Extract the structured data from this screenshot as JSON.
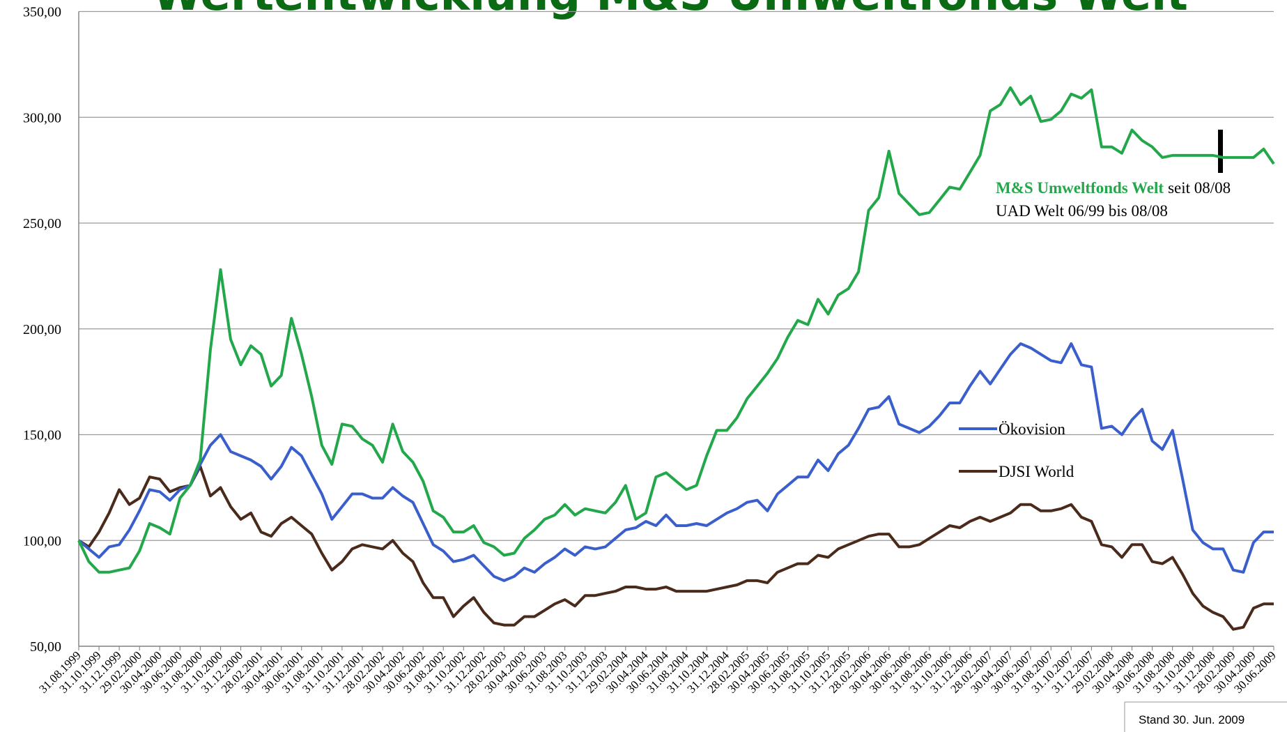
{
  "chart_data": {
    "type": "line",
    "title": "Wertentwicklung M&S Umweltfonds Welt",
    "annotations": [
      "seit 08/08",
      "UAD Welt 06/99 bis 08/08",
      "Stand 30. Jun. 2009"
    ],
    "categories": [
      "31.08.1999",
      null,
      "31.10.1999",
      null,
      "31.12.1999",
      null,
      "29.02.2000",
      null,
      "30.04.2000",
      null,
      "30.06.2000",
      null,
      "31.08.2000",
      null,
      "31.10.2000",
      null,
      "31.12.2000",
      null,
      "28.02.2001",
      null,
      "30.04.2001",
      null,
      "30.06.2001",
      null,
      "31.08.2001",
      null,
      "31.10.2001",
      null,
      "31.12.2001",
      null,
      "28.02.2002",
      null,
      "30.04.2002",
      null,
      "30.06.2002",
      null,
      "31.08.2002",
      null,
      "31.10.2002",
      null,
      "31.12.2002",
      null,
      "28.02.2003",
      null,
      "30.04.2003",
      null,
      "30.06.2003",
      null,
      "31.08.2003",
      null,
      "31.10.2003",
      null,
      "31.12.2003",
      null,
      "29.02.2004",
      null,
      "30.04.2004",
      null,
      "30.06.2004",
      null,
      "31.08.2004",
      null,
      "31.10.2004",
      null,
      "31.12.2004",
      null,
      "28.02.2005",
      null,
      "30.04.2005",
      null,
      "30.06.2005",
      null,
      "31.08.2005",
      null,
      "31.10.2005",
      null,
      "31.12.2005",
      null,
      "28.02.2006",
      null,
      "30.04.2006",
      null,
      "30.06.2006",
      null,
      "31.08.2006",
      null,
      "31.10.2006",
      null,
      "31.12.2006",
      null,
      "28.02.2007",
      null,
      "30.04.2007",
      null,
      "30.06.2007",
      null,
      "31.08.2007",
      null,
      "31.10.2007",
      null,
      "31.12.2007",
      null,
      "29.02.2008",
      null,
      "30.04.2008",
      null,
      "30.06.2008",
      null,
      "31.08.2008",
      null,
      "31.10.2008",
      null,
      "31.12.2008",
      null,
      "28.02.2009",
      null,
      "30.04.2009",
      null,
      "30.06.2009"
    ],
    "series": [
      {
        "name": "M&S Umweltfonds Welt",
        "color": "#22a84a",
        "values": [
          100,
          90,
          85,
          85,
          86,
          87,
          95,
          108,
          106,
          103,
          120,
          126,
          138,
          190,
          228,
          195,
          183,
          192,
          188,
          173,
          178,
          205,
          188,
          168,
          145,
          136,
          155,
          154,
          148,
          145,
          137,
          155,
          142,
          137,
          128,
          114,
          111,
          104,
          104,
          107,
          99,
          97,
          93,
          94,
          101,
          105,
          110,
          112,
          117,
          112,
          115,
          114,
          113,
          118,
          126,
          110,
          113,
          130,
          132,
          128,
          124,
          126,
          140,
          152,
          152,
          158,
          167,
          173,
          179,
          186,
          196,
          204,
          202,
          214,
          207,
          216,
          219,
          227,
          256,
          262,
          284,
          264,
          259,
          254,
          255,
          261,
          267,
          266,
          274,
          282,
          303,
          306,
          314,
          306,
          310,
          298,
          299,
          303,
          311,
          309,
          313,
          286,
          286,
          283,
          294,
          289,
          286,
          281,
          282,
          282,
          282,
          282,
          282,
          281,
          281,
          281,
          281,
          285,
          278
        ]
      },
      {
        "name": "Ökovision",
        "color": "#3a5fcd",
        "values": [
          100,
          96,
          92,
          97,
          98,
          105,
          114,
          124,
          123,
          119,
          124,
          126,
          136,
          145,
          150,
          142,
          140,
          138,
          135,
          129,
          135,
          144,
          140,
          131,
          122,
          110,
          116,
          122,
          122,
          120,
          120,
          125,
          121,
          118,
          108,
          98,
          95,
          90,
          91,
          93,
          88,
          83,
          81,
          83,
          87,
          85,
          89,
          92,
          96,
          93,
          97,
          96,
          97,
          101,
          105,
          106,
          109,
          107,
          112,
          107,
          107,
          108,
          107,
          110,
          113,
          115,
          118,
          119,
          114,
          122,
          126,
          130,
          130,
          138,
          133,
          141,
          145,
          153,
          162,
          163,
          168,
          155,
          153,
          151,
          154,
          159,
          165,
          165,
          173,
          180,
          174,
          181,
          188,
          193,
          191,
          188,
          185,
          184,
          193,
          183,
          182,
          153,
          154,
          150,
          157,
          162,
          147,
          143,
          152,
          129,
          105,
          99,
          96,
          96,
          86,
          85,
          99,
          104,
          104
        ]
      },
      {
        "name": "DJSI World",
        "color": "#4a2a1a",
        "values": [
          100,
          97,
          104,
          113,
          124,
          117,
          120,
          130,
          129,
          123,
          125,
          126,
          135,
          121,
          125,
          116,
          110,
          113,
          104,
          102,
          108,
          111,
          107,
          103,
          94,
          86,
          90,
          96,
          98,
          97,
          96,
          100,
          94,
          90,
          80,
          73,
          73,
          64,
          69,
          73,
          66,
          61,
          60,
          60,
          64,
          64,
          67,
          70,
          72,
          69,
          74,
          74,
          75,
          76,
          78,
          78,
          77,
          77,
          78,
          76,
          76,
          76,
          76,
          77,
          78,
          79,
          81,
          81,
          80,
          85,
          87,
          89,
          89,
          93,
          92,
          96,
          98,
          100,
          102,
          103,
          103,
          97,
          97,
          98,
          101,
          104,
          107,
          106,
          109,
          111,
          109,
          111,
          113,
          117,
          117,
          114,
          114,
          115,
          117,
          111,
          109,
          98,
          97,
          92,
          98,
          98,
          90,
          89,
          92,
          84,
          75,
          69,
          66,
          64,
          58,
          59,
          68,
          70,
          70
        ]
      }
    ],
    "ylim": [
      50,
      350
    ],
    "yticks": [
      {
        "value": 50,
        "label": "50,00"
      },
      {
        "value": 100,
        "label": "100,00"
      },
      {
        "value": 150,
        "label": "150,00"
      },
      {
        "value": 200,
        "label": "200,00"
      },
      {
        "value": 250,
        "label": "250,00"
      },
      {
        "value": 300,
        "label": "300,00"
      },
      {
        "value": 350,
        "label": "350,00"
      }
    ],
    "grid": true
  }
}
